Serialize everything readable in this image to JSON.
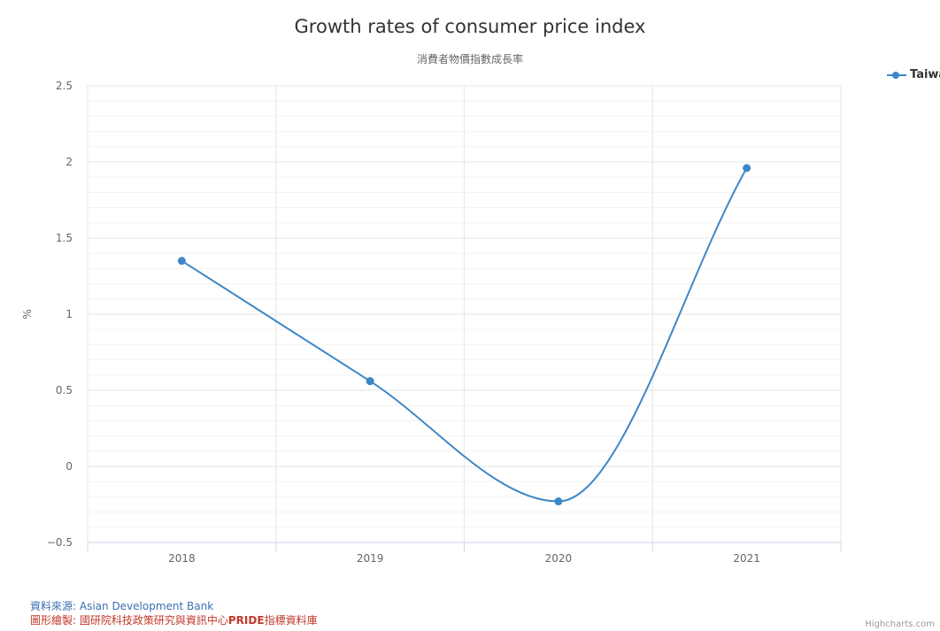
{
  "chart_data": {
    "type": "line",
    "title": "Growth rates of consumer price index",
    "subtitle": "消費者物價指數成長率",
    "xlabel": "",
    "ylabel": "%",
    "categories": [
      "2018",
      "2019",
      "2020",
      "2021"
    ],
    "series": [
      {
        "name": "Taiwan",
        "values": [
          1.35,
          0.56,
          -0.23,
          1.96
        ],
        "color": "#3d87c7"
      }
    ],
    "ylim": [
      -0.5,
      2.5
    ],
    "yticks": [
      -0.5,
      0,
      0.5,
      1,
      1.5,
      2,
      2.5
    ],
    "ytick_labels": [
      "−0.5",
      "0",
      "0.5",
      "1",
      "1.5",
      "2",
      "2.5"
    ],
    "grid": true,
    "legend_position": "top-right"
  },
  "source": {
    "label": "資料來源:",
    "value": "Asian Development Bank",
    "credit_label": "圖形繪製:",
    "credit_value_prefix": "國研院科技政策研究與資訊中心",
    "credit_value_bold": "PRIDE",
    "credit_value_suffix": "指標資料庫"
  },
  "credits": "Highcharts.com",
  "colors": {
    "series": "#3d87c7",
    "grid": "#e6e6e6",
    "axis": "#ccd6eb",
    "source": "#3d6fb0",
    "credit": "#c0392b"
  }
}
